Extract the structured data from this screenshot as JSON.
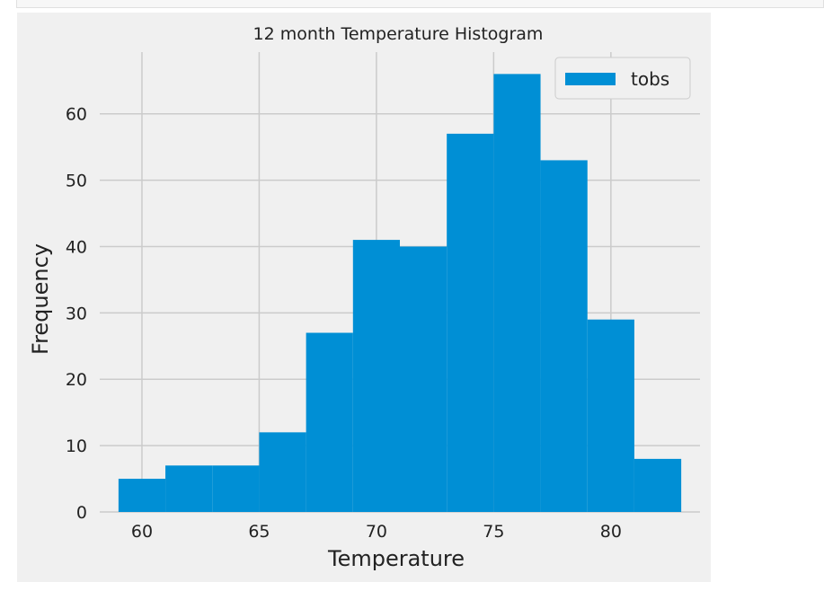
{
  "chart_data": {
    "type": "bar",
    "title": "12 month Temperature Histogram",
    "xlabel": "Temperature",
    "ylabel": "Frequency",
    "legend": {
      "position": "top-right",
      "entries": [
        "tobs"
      ]
    },
    "grid": true,
    "xlim": [
      58.2,
      83.8
    ],
    "ylim": [
      0,
      69.3
    ],
    "x_ticks": [
      60,
      65,
      70,
      75,
      80
    ],
    "y_ticks": [
      0,
      10,
      20,
      30,
      40,
      50,
      60
    ],
    "bin_edges": [
      59,
      61,
      63,
      65,
      67,
      69,
      71,
      73,
      75,
      77,
      79,
      81,
      83
    ],
    "series": [
      {
        "name": "tobs",
        "color": "#008fd5",
        "values": [
          5,
          7,
          7,
          12,
          27,
          41,
          40,
          57,
          66,
          53,
          29,
          8
        ]
      }
    ]
  }
}
